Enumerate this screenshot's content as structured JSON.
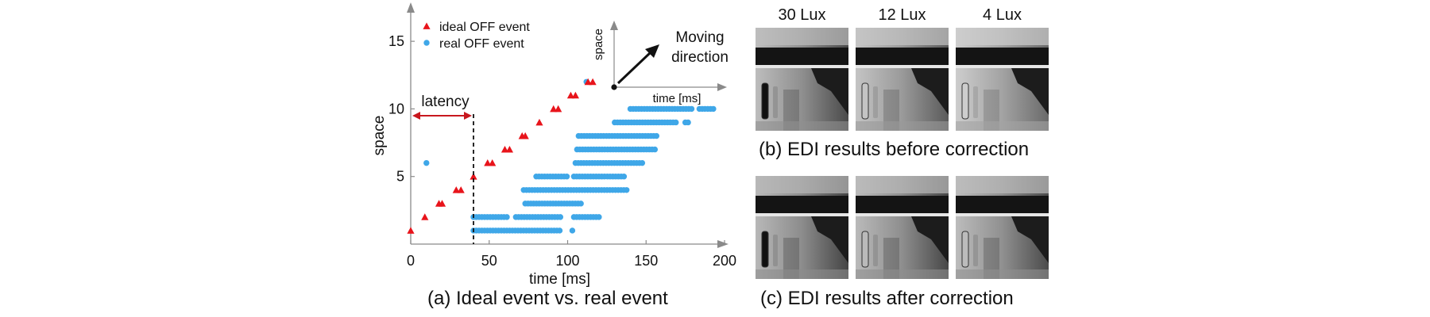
{
  "chart_data": {
    "type": "scatter",
    "caption": "(a) Ideal event vs. real event",
    "xlabel": "time [ms]",
    "ylabel": "space",
    "xlim": [
      0,
      200
    ],
    "ylim": [
      0,
      17
    ],
    "xticks": [
      0,
      50,
      100,
      150,
      200
    ],
    "yticks": [
      5,
      10,
      15
    ],
    "legend_position": "top-left",
    "series": [
      {
        "name": "ideal OFF event",
        "marker": "triangle",
        "color": "#e8141b",
        "points": [
          [
            0,
            1
          ],
          [
            9,
            2
          ],
          [
            18,
            3
          ],
          [
            20,
            3
          ],
          [
            29,
            4
          ],
          [
            32,
            4
          ],
          [
            40,
            5
          ],
          [
            49,
            6
          ],
          [
            52,
            6
          ],
          [
            60,
            7
          ],
          [
            63,
            7
          ],
          [
            71,
            8
          ],
          [
            73,
            8
          ],
          [
            82,
            9
          ],
          [
            91,
            10
          ],
          [
            94,
            10
          ],
          [
            102,
            11
          ],
          [
            105,
            11
          ],
          [
            113,
            12
          ],
          [
            116,
            12
          ]
        ]
      },
      {
        "name": "real OFF event",
        "marker": "circle",
        "color": "#3fa7e8",
        "points": [
          [
            10,
            6
          ],
          [
            112,
            12
          ]
        ],
        "runs": [
          {
            "y": 1,
            "x_start": 40,
            "x_end": 95
          },
          {
            "y": 1,
            "x_start": 103,
            "x_end": 103
          },
          {
            "y": 2,
            "x_start": 40,
            "x_end": 62
          },
          {
            "y": 2,
            "x_start": 67,
            "x_end": 97
          },
          {
            "y": 2,
            "x_start": 104,
            "x_end": 120
          },
          {
            "y": 3,
            "x_start": 73,
            "x_end": 110
          },
          {
            "y": 4,
            "x_start": 72,
            "x_end": 138
          },
          {
            "y": 5,
            "x_start": 80,
            "x_end": 100
          },
          {
            "y": 5,
            "x_start": 104,
            "x_end": 137
          },
          {
            "y": 6,
            "x_start": 105,
            "x_end": 148
          },
          {
            "y": 7,
            "x_start": 106,
            "x_end": 157
          },
          {
            "y": 8,
            "x_start": 107,
            "x_end": 158
          },
          {
            "y": 9,
            "x_start": 130,
            "x_end": 170
          },
          {
            "y": 9,
            "x_start": 175,
            "x_end": 178
          },
          {
            "y": 10,
            "x_start": 140,
            "x_end": 180
          },
          {
            "y": 10,
            "x_start": 184,
            "x_end": 193
          }
        ]
      }
    ],
    "annotations": {
      "latency_label": "latency",
      "latency_range_ms": [
        0,
        40
      ],
      "latency_level": 9.5,
      "inset_xlabel": "time [ms]",
      "inset_ylabel": "space",
      "inset_text_line1": "Moving",
      "inset_text_line2": "direction"
    }
  },
  "figures": {
    "lux_labels": [
      "30 Lux",
      "12 Lux",
      "4 Lux"
    ],
    "caption_b": "(b) EDI results before correction",
    "caption_c": "(c) EDI results after correction"
  }
}
